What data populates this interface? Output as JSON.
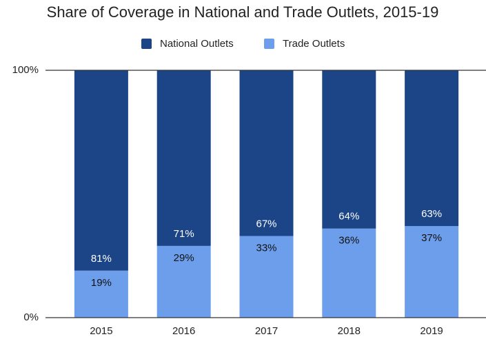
{
  "chart_data": {
    "type": "stacked_bar",
    "title": "Share of Coverage in National and Trade Outlets, 2015-19",
    "categories": [
      "2015",
      "2016",
      "2017",
      "2018",
      "2019"
    ],
    "series": [
      {
        "name": "Trade Outlets",
        "color": "#6d9eeb",
        "values": [
          19,
          29,
          33,
          36,
          37
        ],
        "value_labels": [
          "19%",
          "29%",
          "33%",
          "36%",
          "37%"
        ]
      },
      {
        "name": "National Outlets",
        "color": "#1c4587",
        "values": [
          81,
          71,
          67,
          64,
          63
        ],
        "value_labels": [
          "81%",
          "71%",
          "67%",
          "64%",
          "63%"
        ]
      }
    ],
    "ylim": [
      0,
      100
    ],
    "yticks": [
      {
        "value": 0,
        "label": "0%"
      },
      {
        "value": 100,
        "label": "100%"
      }
    ],
    "grid": true,
    "legend": "top"
  }
}
